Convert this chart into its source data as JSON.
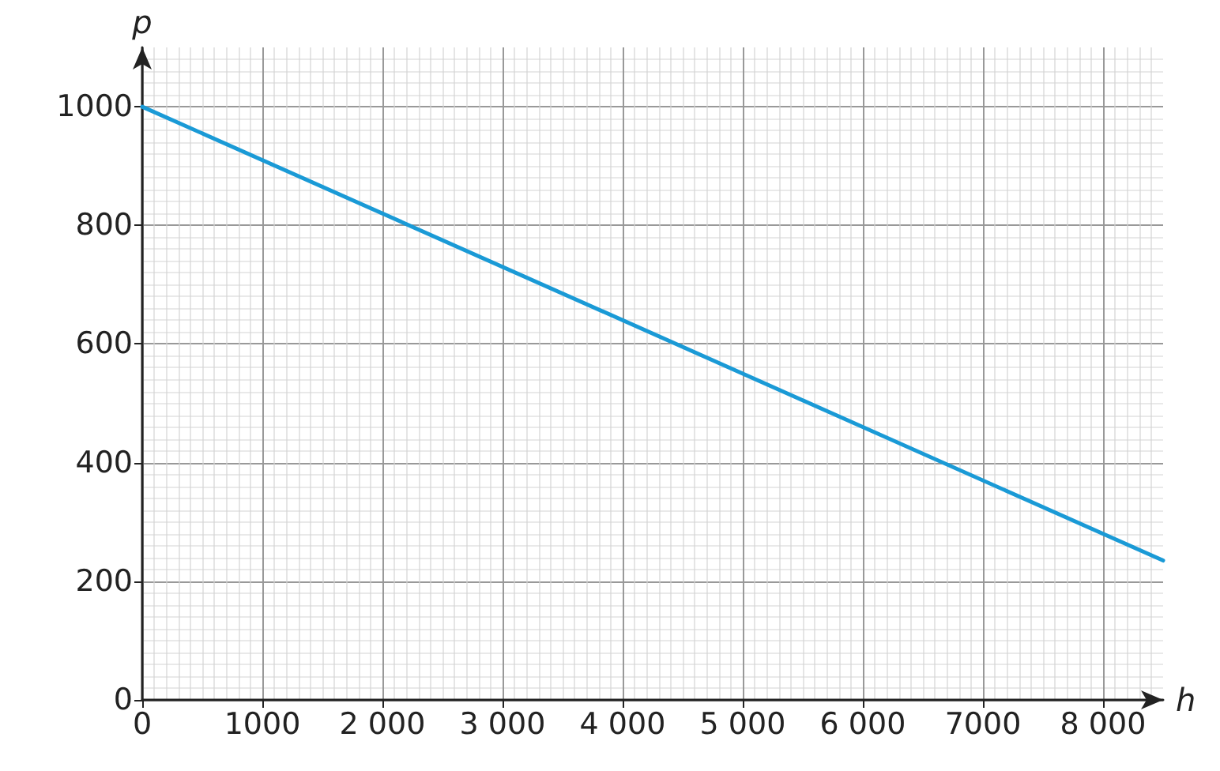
{
  "chart_data": {
    "type": "line",
    "xlabel": "h",
    "ylabel": "p",
    "series": [
      {
        "color": "#1a9ad6",
        "x": [
          0,
          8500
        ],
        "values": [
          1000,
          235
        ]
      }
    ],
    "xlim": [
      0,
      8500
    ],
    "ylim": [
      0,
      1100
    ],
    "xticks": [
      0,
      1000,
      {
        "value": 2000,
        "label": "2 000"
      },
      {
        "value": 3000,
        "label": "3 000"
      },
      {
        "value": 4000,
        "label": "4 000"
      },
      {
        "value": 5000,
        "label": "5 000"
      },
      {
        "value": 6000,
        "label": "6 000"
      },
      7000,
      {
        "value": 8000,
        "label": "8 000"
      }
    ],
    "yticks": [
      0,
      200,
      400,
      600,
      800,
      1000
    ],
    "grid": true,
    "marker": "none",
    "line_style": "solid"
  }
}
